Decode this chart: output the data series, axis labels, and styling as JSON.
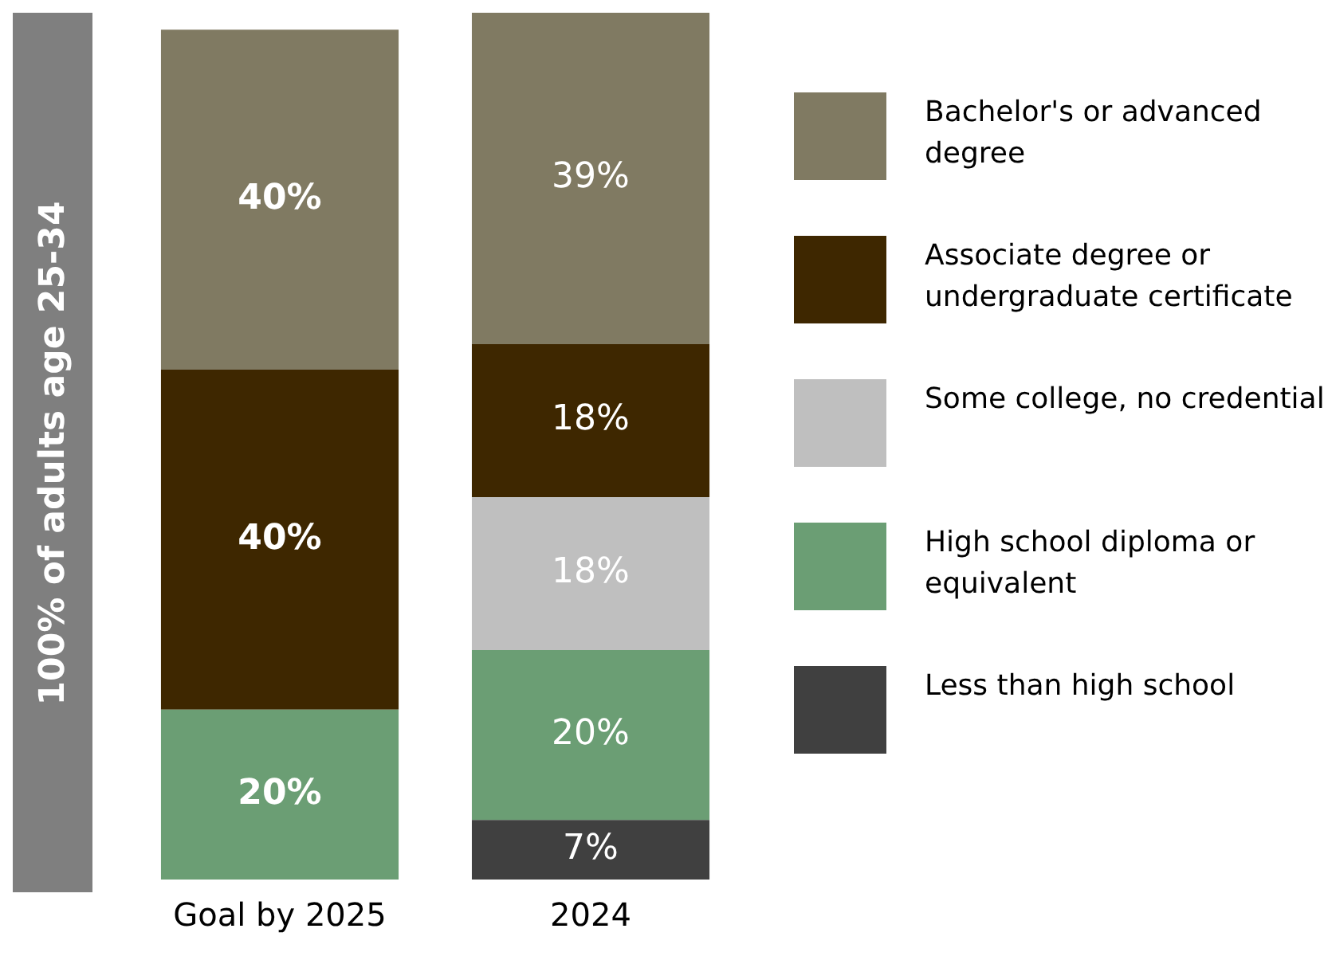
{
  "chart_data": {
    "type": "bar",
    "stacked": true,
    "ylabel": "100% of adults age 25-34",
    "categories": [
      "Goal by 2025",
      "2024"
    ],
    "legend": "right",
    "grid": false,
    "tick_labels": "x",
    "series": [
      {
        "name": "Less than high school",
        "color": "#404040",
        "values": [
          null,
          7
        ],
        "value_labels": [
          null,
          "7%"
        ]
      },
      {
        "name": "High school diploma or equivalent",
        "color": "#6b9e74",
        "values": [
          20,
          20
        ],
        "value_labels": [
          "20%",
          "20%"
        ]
      },
      {
        "name": "Some college, no credential",
        "color": "#bfbfbf",
        "values": [
          null,
          18
        ],
        "value_labels": [
          null,
          "18%"
        ]
      },
      {
        "name": "Associate degree or undergraduate certificate",
        "color": "#3e2700",
        "values": [
          40,
          18
        ],
        "value_labels": [
          "40%",
          "18%"
        ]
      },
      {
        "name": "Bachelor's or advanced degree",
        "color": "#807a62",
        "values": [
          40,
          39
        ],
        "value_labels": [
          "40%",
          "39%"
        ]
      }
    ]
  }
}
